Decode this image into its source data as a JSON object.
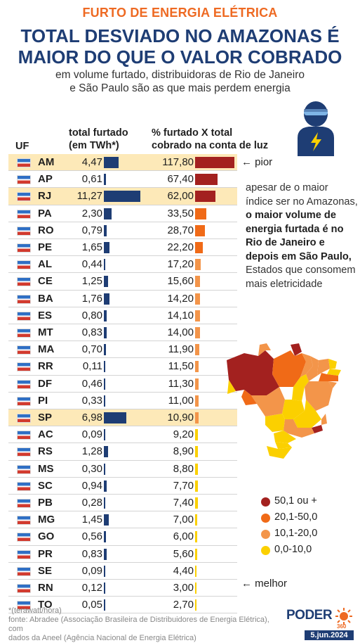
{
  "header": {
    "kicker": "FURTO DE ENERGIA ELÉTRICA",
    "title_line1": "TOTAL DESVIADO NO AMAZONAS É",
    "title_line2": "MAIOR DO QUE O VALOR COBRADO",
    "subtitle_line1": "em volume furtado, distribuidoras de Rio de Janeiro",
    "subtitle_line2": "e São Paulo são as que mais perdem energia"
  },
  "columns": {
    "uf": "UF",
    "stolen_line1": "total furtado",
    "stolen_line2": "(em TWh*)",
    "pct_line1": "% furtado X total",
    "pct_line2": "cobrado na conta de luz"
  },
  "annotations": {
    "worst": "← pior",
    "best": "← melhor"
  },
  "paragraph": {
    "part1": "apesar de o maior índice ser no Amazonas, ",
    "bold": "o maior volume de energia furtada é no Rio de Janeiro e depois em São Paulo,",
    "part2": " Estados que consomem mais eletricidade"
  },
  "legend": [
    {
      "label": "50,1 ou +",
      "color": "#a3211f"
    },
    {
      "label": "20,1-50,0",
      "color": "#f06a17"
    },
    {
      "label": "10,1-20,0",
      "color": "#f3954a"
    },
    {
      "label": "0,0-10,0",
      "color": "#fbd000"
    }
  ],
  "colors": {
    "navy": "#1e3d74",
    "orange": "#ee6a23",
    "highlight": "#fde9b8"
  },
  "icons": {
    "thief": "thief-with-lightning-icon",
    "map": "brazil-map"
  },
  "footer": {
    "note1": "*(terawatt/hora)",
    "note2": "fonte: Abradee (Associação Brasileira de Distribuidores de Energia Elétrica), com",
    "note3": "dados da Aneel (Agência Nacional de Energia Elétrica)",
    "logo": "PODER",
    "logo_sub": "360",
    "date": "5.jun.2024"
  },
  "chart_data": {
    "type": "table",
    "series": [
      {
        "name": "total furtado (em TWh*)",
        "values": [
          4.47,
          0.61,
          11.27,
          2.3,
          0.79,
          1.65,
          0.44,
          1.25,
          1.76,
          0.8,
          0.83,
          0.7,
          0.11,
          0.46,
          0.33,
          6.98,
          0.09,
          1.28,
          0.3,
          0.94,
          0.28,
          1.45,
          0.56,
          0.83,
          0.09,
          0.12,
          0.05
        ]
      },
      {
        "name": "% furtado X total cobrado na conta de luz",
        "values": [
          117.8,
          67.4,
          62.0,
          33.5,
          28.7,
          22.2,
          17.2,
          15.6,
          14.2,
          14.1,
          14.0,
          11.9,
          11.5,
          11.3,
          11.0,
          10.9,
          9.2,
          8.9,
          8.8,
          7.7,
          7.4,
          7.0,
          6.0,
          5.6,
          4.4,
          3.0,
          2.7
        ]
      }
    ],
    "rows": [
      {
        "uf": "AM",
        "stolen": "4,47",
        "pct": "117,80"
      },
      {
        "uf": "AP",
        "stolen": "0,61",
        "pct": "67,40"
      },
      {
        "uf": "RJ",
        "stolen": "11,27",
        "pct": "62,00"
      },
      {
        "uf": "PA",
        "stolen": "2,30",
        "pct": "33,50"
      },
      {
        "uf": "RO",
        "stolen": "0,79",
        "pct": "28,70"
      },
      {
        "uf": "PE",
        "stolen": "1,65",
        "pct": "22,20"
      },
      {
        "uf": "AL",
        "stolen": "0,44",
        "pct": "17,20"
      },
      {
        "uf": "CE",
        "stolen": "1,25",
        "pct": "15,60"
      },
      {
        "uf": "BA",
        "stolen": "1,76",
        "pct": "14,20"
      },
      {
        "uf": "ES",
        "stolen": "0,80",
        "pct": "14,10"
      },
      {
        "uf": "MT",
        "stolen": "0,83",
        "pct": "14,00"
      },
      {
        "uf": "MA",
        "stolen": "0,70",
        "pct": "11,90"
      },
      {
        "uf": "RR",
        "stolen": "0,11",
        "pct": "11,50"
      },
      {
        "uf": "DF",
        "stolen": "0,46",
        "pct": "11,30"
      },
      {
        "uf": "PI",
        "stolen": "0,33",
        "pct": "11,00"
      },
      {
        "uf": "SP",
        "stolen": "6,98",
        "pct": "10,90"
      },
      {
        "uf": "AC",
        "stolen": "0,09",
        "pct": "9,20"
      },
      {
        "uf": "RS",
        "stolen": "1,28",
        "pct": "8,90"
      },
      {
        "uf": "MS",
        "stolen": "0,30",
        "pct": "8,80"
      },
      {
        "uf": "SC",
        "stolen": "0,94",
        "pct": "7,70"
      },
      {
        "uf": "PB",
        "stolen": "0,28",
        "pct": "7,40"
      },
      {
        "uf": "MG",
        "stolen": "1,45",
        "pct": "7,00"
      },
      {
        "uf": "GO",
        "stolen": "0,56",
        "pct": "6,00"
      },
      {
        "uf": "PR",
        "stolen": "0,83",
        "pct": "5,60"
      },
      {
        "uf": "SE",
        "stolen": "0,09",
        "pct": "4,40"
      },
      {
        "uf": "RN",
        "stolen": "0,12",
        "pct": "3,00"
      },
      {
        "uf": "TO",
        "stolen": "0,05",
        "pct": "2,70"
      }
    ],
    "highlighted": [
      "AM",
      "RJ",
      "SP"
    ]
  }
}
